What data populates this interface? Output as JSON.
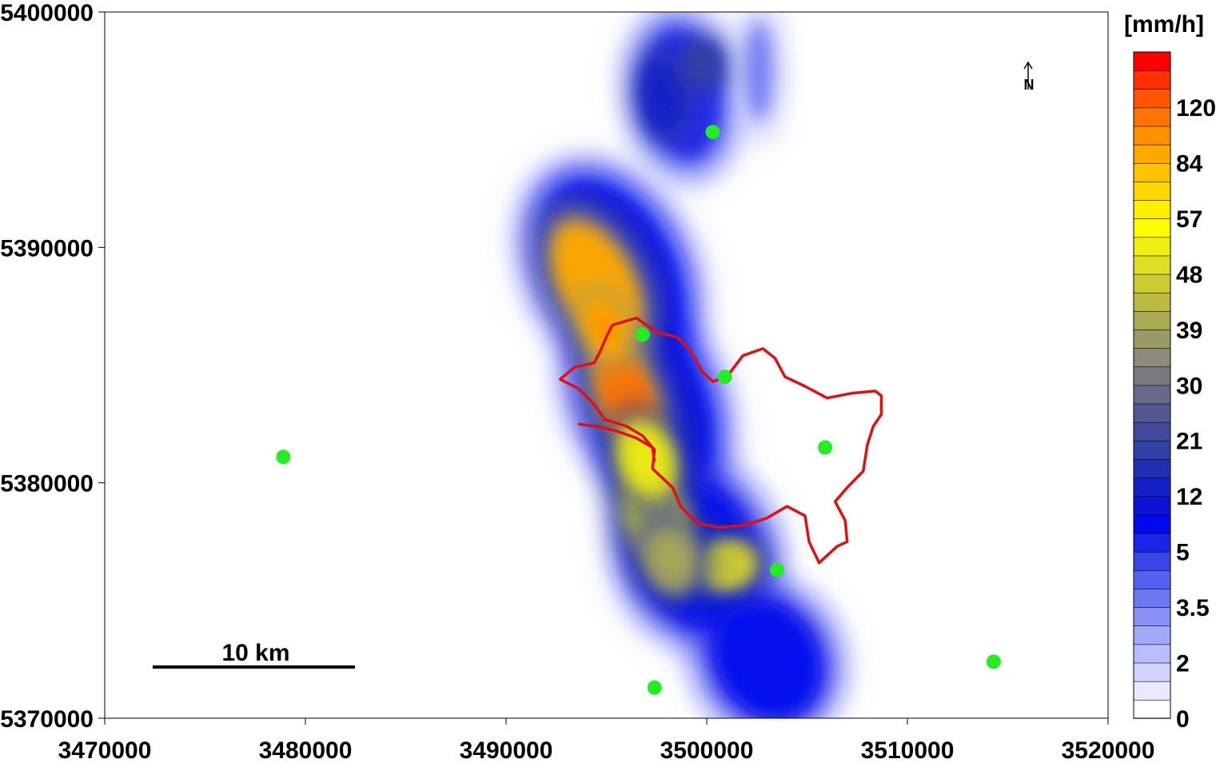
{
  "map": {
    "type": "rainfall-intensity-contour-map",
    "x_axis": {
      "ticks": [
        "3470000",
        "3480000",
        "3490000",
        "3500000",
        "3510000",
        "3520000"
      ],
      "range": [
        3470000,
        3520000
      ]
    },
    "y_axis": {
      "ticks": [
        "5370000",
        "5380000",
        "5390000",
        "5400000"
      ],
      "range": [
        5370000,
        5400000
      ]
    },
    "scale_bar": {
      "label": "10 km",
      "length_m": 10000
    },
    "north_arrow": {
      "label": "N",
      "icon": "north-arrow-icon"
    },
    "stations": [
      {
        "x": 3478900,
        "y": 5381100
      },
      {
        "x": 3500300,
        "y": 5394900
      },
      {
        "x": 3496800,
        "y": 5386300
      },
      {
        "x": 3500900,
        "y": 5384500
      },
      {
        "x": 3505900,
        "y": 5381500
      },
      {
        "x": 3503500,
        "y": 5376300
      },
      {
        "x": 3497400,
        "y": 5371300
      },
      {
        "x": 3514300,
        "y": 5372400
      }
    ],
    "station_color": "#22ee22",
    "catchment_color": "#e01010",
    "catchment_outline": [
      [
        3495300,
        5386700
      ],
      [
        3496500,
        5387000
      ],
      [
        3497500,
        5386400
      ],
      [
        3498500,
        5386200
      ],
      [
        3499200,
        5385600
      ],
      [
        3499800,
        5384700
      ],
      [
        3500300,
        5384300
      ],
      [
        3501000,
        5384500
      ],
      [
        3501800,
        5385400
      ],
      [
        3502800,
        5385700
      ],
      [
        3503400,
        5385300
      ],
      [
        3503900,
        5384500
      ],
      [
        3504900,
        5384100
      ],
      [
        3506000,
        5383600
      ],
      [
        3507200,
        5383800
      ],
      [
        3508400,
        5383900
      ],
      [
        3508700,
        5383700
      ],
      [
        3508700,
        5382900
      ],
      [
        3508300,
        5382400
      ],
      [
        3508000,
        5381600
      ],
      [
        3507800,
        5380500
      ],
      [
        3507000,
        5379800
      ],
      [
        3506400,
        5379200
      ],
      [
        3506900,
        5378400
      ],
      [
        3507000,
        5377500
      ],
      [
        3506500,
        5377300
      ],
      [
        3505600,
        5376600
      ],
      [
        3505100,
        5377500
      ],
      [
        3504900,
        5378600
      ],
      [
        3504000,
        5379000
      ],
      [
        3503000,
        5378500
      ],
      [
        3501900,
        5378200
      ],
      [
        3500600,
        5378100
      ],
      [
        3499500,
        5378300
      ],
      [
        3498700,
        5379000
      ],
      [
        3498300,
        5379800
      ],
      [
        3497300,
        5380600
      ],
      [
        3497400,
        5381400
      ],
      [
        3496800,
        5382000
      ],
      [
        3496000,
        5382400
      ],
      [
        3494900,
        5382700
      ],
      [
        3494500,
        5383200
      ],
      [
        3494200,
        5383500
      ],
      [
        3493600,
        5384000
      ],
      [
        3492700,
        5384400
      ],
      [
        3493400,
        5384900
      ],
      [
        3494400,
        5385100
      ],
      [
        3494700,
        5385600
      ],
      [
        3495000,
        5386200
      ]
    ],
    "inner_divide": [
      [
        3493600,
        5382500
      ],
      [
        3494500,
        5382400
      ],
      [
        3495500,
        5382200
      ],
      [
        3496500,
        5381900
      ],
      [
        3497300,
        5381500
      ],
      [
        3497400,
        5380900
      ]
    ]
  },
  "legend": {
    "unit_label": "[mm/h]",
    "labels": [
      "120",
      "84",
      "57",
      "48",
      "39",
      "30",
      "21",
      "12",
      "5",
      "3.5",
      "2",
      "0"
    ],
    "bands": [
      "#ffffff",
      "#e8eafc",
      "#d0d4fa",
      "#b8befa",
      "#a0a8f8",
      "#8890f6",
      "#6e78f2",
      "#5460ee",
      "#3846ea",
      "#1a24e8",
      "#0008ee",
      "#0a12d6",
      "#1420c6",
      "#2030b6",
      "#3040a6",
      "#404a98",
      "#525890",
      "#666a88",
      "#7a7a80",
      "#8c8c78",
      "#9a9a66",
      "#aaaa55",
      "#bbbb44",
      "#cccc33",
      "#dede22",
      "#eeee11",
      "#ffff00",
      "#ffee00",
      "#ffd800",
      "#ffc200",
      "#ffa800",
      "#ff9000",
      "#ff7400",
      "#ff5400",
      "#ff3000",
      "#ff0000"
    ]
  },
  "rain_field": {
    "cells": [
      {
        "x": 3494500,
        "y": 5388500,
        "sx": 1800,
        "sy": 2800,
        "rot": -28,
        "v": 84
      },
      {
        "x": 3496000,
        "y": 5383700,
        "sx": 1300,
        "sy": 2200,
        "rot": -22,
        "v": 110
      },
      {
        "x": 3494900,
        "y": 5386600,
        "sx": 1000,
        "sy": 1400,
        "rot": -20,
        "v": 95
      },
      {
        "x": 3497500,
        "y": 5378500,
        "sx": 1600,
        "sy": 2400,
        "rot": -20,
        "v": 45
      },
      {
        "x": 3501000,
        "y": 5376500,
        "sx": 1600,
        "sy": 1100,
        "rot": -10,
        "v": 45
      },
      {
        "x": 3498200,
        "y": 5376800,
        "sx": 1400,
        "sy": 1600,
        "rot": -15,
        "v": 38
      },
      {
        "x": 3497000,
        "y": 5381000,
        "sx": 1500,
        "sy": 1800,
        "rot": -20,
        "v": 50
      },
      {
        "x": 3497800,
        "y": 5396400,
        "sx": 1000,
        "sy": 1600,
        "rot": -5,
        "v": 14
      },
      {
        "x": 3499800,
        "y": 5397800,
        "sx": 900,
        "sy": 900,
        "rot": 0,
        "v": 18
      }
    ],
    "halo": [
      {
        "x": 3495200,
        "y": 5389000,
        "sx": 3600,
        "sy": 4600,
        "rot": -28,
        "v": 8
      },
      {
        "x": 3497000,
        "y": 5383500,
        "sx": 3400,
        "sy": 4800,
        "rot": -22,
        "v": 8
      },
      {
        "x": 3499500,
        "y": 5377000,
        "sx": 3600,
        "sy": 3800,
        "rot": -18,
        "v": 7
      },
      {
        "x": 3503000,
        "y": 5372500,
        "sx": 3200,
        "sy": 3200,
        "rot": -30,
        "v": 6
      },
      {
        "x": 3498800,
        "y": 5396500,
        "sx": 2400,
        "sy": 3400,
        "rot": -8,
        "v": 4
      },
      {
        "x": 3502600,
        "y": 5397500,
        "sx": 900,
        "sy": 2600,
        "rot": 0,
        "v": 1.5
      }
    ]
  }
}
